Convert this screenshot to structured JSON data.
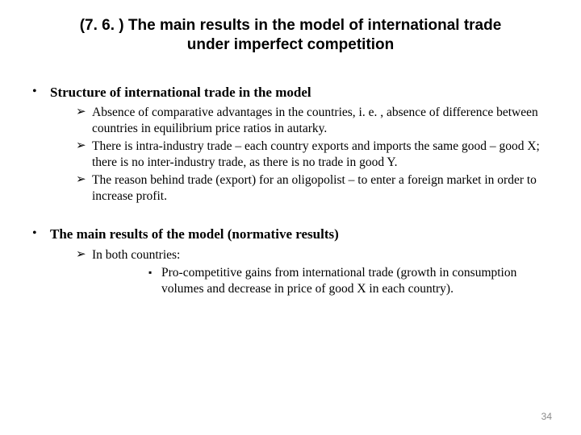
{
  "title": "(7. 6. ) The main results in the model of international trade under imperfect competition",
  "section1": {
    "heading": "Structure of international trade in the model",
    "items": [
      "Absence of comparative advantages in the countries, i. e. , absence of difference between countries in equilibrium price ratios in autarky.",
      "There is intra-industry trade – each country exports and imports the same good – good X; there is no inter-industry trade, as there is no trade in good Y.",
      "The reason behind trade (export) for an oligopolist – to enter a foreign market in order to increase profit."
    ]
  },
  "section2": {
    "heading": "The main results of the model (normative results)",
    "items": [
      "In both countries:"
    ],
    "subitems": [
      "Pro-competitive gains from international trade (growth in consumption volumes and decrease in price of good X in each country)."
    ]
  },
  "markers": {
    "bullet": "•",
    "arrow": "➢",
    "square": "▪"
  },
  "pageNumber": "34"
}
